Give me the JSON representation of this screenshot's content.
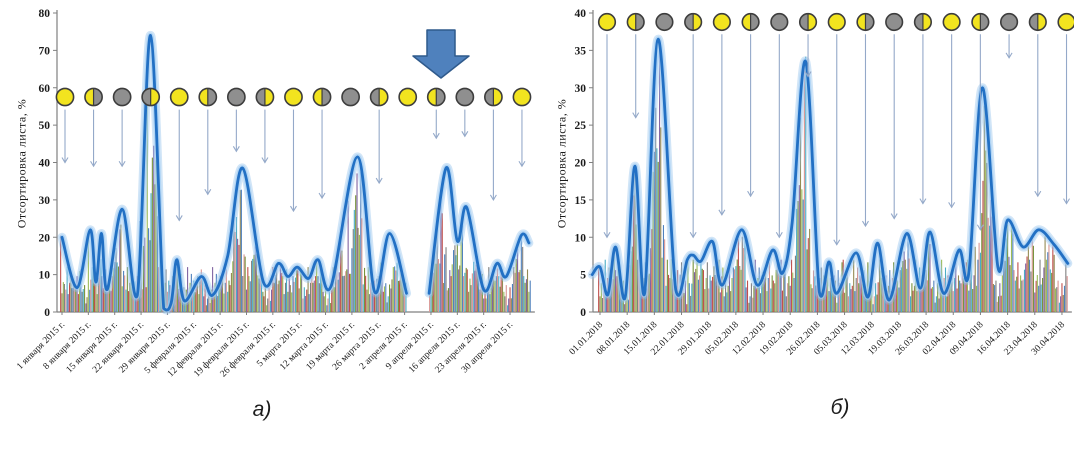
{
  "colors": {
    "curve": "#2270c4",
    "curve_glow": "#9cc6ec",
    "axis": "#808080",
    "text": "#1a1a1a",
    "arrow": "#94a9c9",
    "block_arrow_fill": "#4f81bd",
    "block_arrow_stroke": "#2f5a8c",
    "moon_yellow": "#f2e41f",
    "moon_gray": "#8f8f8f",
    "moon_border": "#3d3d3d",
    "bar_palette": [
      "#c0504d",
      "#9bbb59",
      "#808080",
      "#4bacc6",
      "#8064a2",
      "#948a54",
      "#4f81bd",
      "#d99694",
      "#77933c"
    ]
  },
  "bar_pattern": [
    0.85,
    0.3,
    0.55,
    0.2,
    0.95,
    0.45,
    0.7,
    0.25,
    0.5,
    1.0,
    0.35,
    0.6,
    0.15,
    0.8,
    0.4,
    0.65
  ],
  "chart_data": [
    {
      "id": "a",
      "type": "line",
      "caption": "а)",
      "ylabel": "Отсортировка листа, %",
      "ylim": [
        0,
        80
      ],
      "y_tick_step": 10,
      "x_labels": [
        "1 января 2015 г.",
        "8 января 2015 г.",
        "15 января 2015 г.",
        "22 января 2015 г.",
        "29 января 2015 г.",
        "5 февраля 2015 г.",
        "12 февраля 2015 г.",
        "19 февраля 2015 г.",
        "26 февраля 2015 г.",
        "5 марта 2015 г.",
        "12 марта 2015 г.",
        "19 марта 2015 г.",
        "26 марта 2015 г.",
        "2 апреля 2015 г.",
        "9 апреля 2015 г.",
        "16 апреля 2015 г.",
        "23 апреля 2015 г.",
        "30 апреля 2015 г."
      ],
      "moons": [
        "full",
        "half-yl",
        "new",
        "half-yr",
        "full",
        "half-yl",
        "new",
        "half-yr",
        "full",
        "half-yl",
        "new",
        "half-yr",
        "full",
        "half-yl",
        "new",
        "half-yr",
        "full"
      ],
      "arrow_ends": [
        40,
        39,
        39,
        null,
        24.5,
        31.5,
        43,
        40,
        27,
        30.5,
        null,
        34.5,
        null,
        46.5,
        47,
        30,
        39
      ],
      "block_arrow": true,
      "day_span": [
        0,
        124
      ],
      "curve_segments": [
        [
          [
            0,
            20
          ],
          [
            4,
            6.5
          ],
          [
            7.5,
            22
          ],
          [
            9,
            8
          ],
          [
            10.5,
            21
          ],
          [
            12,
            6
          ],
          [
            16,
            27.5
          ],
          [
            20,
            4.5
          ],
          [
            23.5,
            74
          ],
          [
            27,
            1
          ],
          [
            29,
            2.5
          ],
          [
            30.5,
            14
          ],
          [
            32.5,
            3
          ],
          [
            37,
            9.5
          ],
          [
            40,
            4.5
          ],
          [
            44,
            15
          ],
          [
            48,
            38.5
          ],
          [
            53.5,
            8
          ],
          [
            57.5,
            13
          ],
          [
            60,
            9.5
          ],
          [
            62.5,
            12
          ],
          [
            65.5,
            9
          ],
          [
            68,
            14
          ],
          [
            71.5,
            7
          ],
          [
            78.5,
            41.5
          ],
          [
            83,
            5.5
          ],
          [
            87,
            21
          ],
          [
            91.5,
            5
          ]
        ],
        [
          [
            97.5,
            5
          ],
          [
            102,
            38.5
          ],
          [
            105,
            19
          ],
          [
            107.5,
            28
          ],
          [
            112,
            6
          ],
          [
            115.5,
            13
          ],
          [
            118,
            9.5
          ],
          [
            122,
            20.5
          ],
          [
            124,
            18.5
          ]
        ]
      ],
      "bar_base": 12
    },
    {
      "id": "b",
      "type": "line",
      "caption": "б)",
      "ylabel": "Отсортировка листа, %",
      "ylim": [
        0,
        40
      ],
      "y_tick_step": 5,
      "x_labels": [
        "01.01.2018",
        "08.01.2018",
        "15.01.2018",
        "22.01.2018",
        "29.01.2018",
        "05.02.2018",
        "12.02.2018",
        "19.02.2018",
        "26.02.2018",
        "05.03.2018",
        "12.03.2018",
        "19.03.2018",
        "26.03.2018",
        "02.04.2018",
        "09.04.2018",
        "16.04.2018",
        "23.04.2018",
        "30.04.2018"
      ],
      "moons": [
        "full",
        "half-yl",
        "new",
        "half-yr",
        "full",
        "half-yl",
        "new",
        "half-yr",
        "full",
        "half-yl",
        "new",
        "half-yr",
        "full",
        "half-yl",
        "new",
        "half-yr",
        "full"
      ],
      "arrow_ends": [
        10,
        26,
        null,
        10,
        13,
        15.5,
        10,
        31.5,
        9,
        11.5,
        12.5,
        14.5,
        14,
        11,
        34,
        15.5,
        14.5
      ],
      "block_arrow": false,
      "day_span": [
        -1,
        120
      ],
      "curve_segments": [
        [
          [
            -2,
            5
          ],
          [
            0,
            6
          ],
          [
            2,
            2.3
          ],
          [
            4,
            8.7
          ],
          [
            6.5,
            2
          ],
          [
            9,
            19.5
          ],
          [
            11.5,
            2.5
          ],
          [
            15,
            36.5
          ],
          [
            19.5,
            3
          ],
          [
            22.5,
            7
          ],
          [
            24,
            7.6
          ],
          [
            26,
            6.8
          ],
          [
            29,
            9.4
          ],
          [
            31.5,
            3.6
          ],
          [
            36.5,
            11
          ],
          [
            40.5,
            3.6
          ],
          [
            44.5,
            8.3
          ],
          [
            47,
            5.2
          ],
          [
            49.5,
            12
          ],
          [
            53,
            33.5
          ],
          [
            56.5,
            2.7
          ],
          [
            59,
            6.7
          ],
          [
            61,
            2.5
          ],
          [
            66,
            7.9
          ],
          [
            69,
            2
          ],
          [
            71.5,
            9.2
          ],
          [
            74.5,
            1.6
          ],
          [
            79,
            10.5
          ],
          [
            82.5,
            3.2
          ],
          [
            85,
            10.7
          ],
          [
            88.5,
            2.5
          ],
          [
            92.5,
            8.3
          ],
          [
            95,
            5.2
          ],
          [
            98.5,
            30
          ],
          [
            102.5,
            6
          ],
          [
            105,
            12.3
          ],
          [
            109,
            8.7
          ],
          [
            113,
            11
          ],
          [
            117,
            9
          ],
          [
            120.5,
            6.5
          ]
        ]
      ],
      "bar_base": 7
    }
  ]
}
